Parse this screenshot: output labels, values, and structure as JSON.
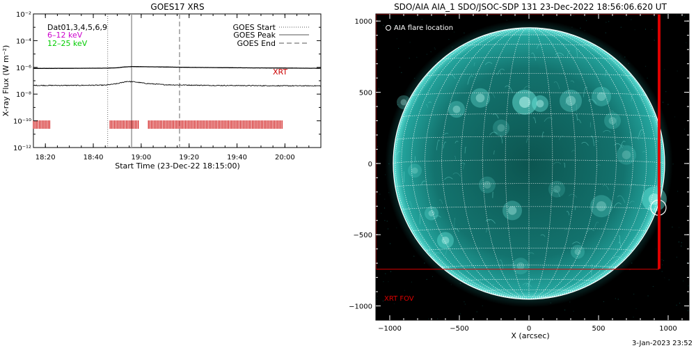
{
  "chart_data": [
    {
      "type": "line",
      "title": "GOES17 XRS",
      "xlabel": "Start Time (23-Dec-22 18:15:00)",
      "ylabel": "X-ray Flux (W m⁻²)",
      "y_scale": "log",
      "ylim": [
        1e-12,
        0.01
      ],
      "y_ticks": [
        {
          "value": -2,
          "label": "10⁻²"
        },
        {
          "value": -4,
          "label": "10⁻⁴"
        },
        {
          "value": -6,
          "label": "10⁻⁶"
        },
        {
          "value": -8,
          "label": "10⁻⁸"
        },
        {
          "value": -10,
          "label": "10⁻¹⁰"
        },
        {
          "value": -12,
          "label": "10⁻¹²"
        }
      ],
      "xlim": [
        "18:15",
        "20:15"
      ],
      "x_ticks": [
        "18:20",
        "18:40",
        "19:00",
        "19:20",
        "19:40",
        "20:00"
      ],
      "legend_left": {
        "text": "Dat01,3,4,5,6,9",
        "channels": [
          {
            "name": "6–12 keV",
            "color": "#cc00cc"
          },
          {
            "name": "12–25 keV",
            "color": "#00cc00"
          }
        ]
      },
      "legend_right": [
        {
          "name": "GOES Start",
          "style": "dotted"
        },
        {
          "name": "GOES Peak",
          "style": "solid"
        },
        {
          "name": "GOES End",
          "style": "dashed"
        }
      ],
      "events": {
        "goes_start": "18:46",
        "goes_peak": "18:56",
        "goes_end": "19:16"
      },
      "series": [
        {
          "name": "long channel",
          "color": "#000000",
          "x": [
            "18:15",
            "18:30",
            "18:45",
            "18:50",
            "18:53",
            "18:56",
            "19:00",
            "19:05",
            "19:20",
            "19:40",
            "20:00",
            "20:15"
          ],
          "log10_flux": [
            -6.08,
            -6.07,
            -6.06,
            -6.03,
            -5.97,
            -5.94,
            -5.95,
            -5.96,
            -6.0,
            -6.03,
            -6.05,
            -6.07
          ]
        },
        {
          "name": "short channel",
          "color": "#000000",
          "x": [
            "18:15",
            "18:30",
            "18:45",
            "18:50",
            "18:54",
            "18:57",
            "19:02",
            "19:10",
            "19:30",
            "20:00",
            "20:15"
          ],
          "log10_flux": [
            -7.35,
            -7.35,
            -7.33,
            -7.22,
            -7.05,
            -7.08,
            -7.2,
            -7.3,
            -7.35,
            -7.38,
            -7.38
          ]
        }
      ],
      "xrt_label": "XRT",
      "xrt_label_color": "#cc0000",
      "xrt_coverage": [
        {
          "start": "18:15",
          "end": "18:22"
        },
        {
          "start": "18:47",
          "end": "18:59"
        },
        {
          "start": "19:03",
          "end": "19:59"
        }
      ]
    },
    {
      "type": "image",
      "title": "SDO/AIA AIA_1 SDO/JSOC-SDP 131 23-Dec-2022 18:56:06.620 UT",
      "xlabel": "X (arcsec)",
      "x_ticks": [
        -1000,
        -500,
        0,
        500,
        1000
      ],
      "y_ticks": [
        1000,
        500,
        0,
        -500,
        -1000
      ],
      "xlim": [
        -1100,
        1150
      ],
      "ylim": [
        -1100,
        1050
      ],
      "solar_radius_arcsec": 975,
      "legend": "AIA flare location",
      "flare_location": {
        "x": 930,
        "y": -310
      },
      "xrt_fov_label": "XRT FOV",
      "xrt_fov_color": "#dd0000",
      "xrt_fov": {
        "x0": -1100,
        "x1": 935,
        "y0": -740,
        "y1": 1050
      },
      "disk_color": "#1a8f8a",
      "background_color": "#000000"
    }
  ],
  "footer": {
    "timestamp": "3-Jan-2023 23:52"
  }
}
